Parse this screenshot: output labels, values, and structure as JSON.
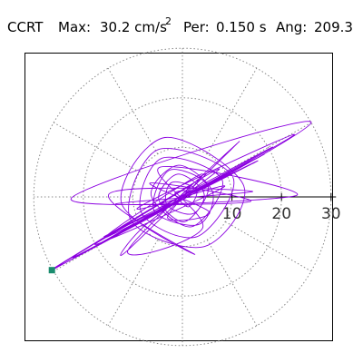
{
  "header": {
    "station": "CCRT",
    "max_label": "Max:",
    "max_value": "30.2 cm/s",
    "max_exponent": "2",
    "period_label": "Per:",
    "period_value": "0.150 s",
    "angle_label": "Ang:",
    "angle_value": "209.3"
  },
  "colors": {
    "trace": "#8b00e0",
    "marker": "#1a8c6e",
    "grid": "#888888",
    "axis": "#000000",
    "frame": "#000000"
  },
  "chart_data": {
    "type": "scatter",
    "title": "",
    "xlabel": "",
    "ylabel": "",
    "projection": "polar",
    "radial_ticks": [
      10,
      20,
      30
    ],
    "radial_max": 30.2,
    "grid": true,
    "grid_rings": [
      10,
      20,
      30
    ],
    "grid_spoke_step_deg": 30,
    "peak": {
      "radius": 30.2,
      "angle_deg": 209.3,
      "period_s": 0.15,
      "units": "cm/s2"
    },
    "series": [
      {
        "type": "line",
        "points": [
          [
            0,
            0
          ],
          [
            0.8,
            1.2
          ],
          [
            -1.5,
            0.7
          ],
          [
            1.2,
            -2.0
          ],
          [
            2.8,
            1.5
          ],
          [
            -2.2,
            2.9
          ],
          [
            -3.1,
            -1.6
          ],
          [
            2.1,
            -3.4
          ],
          [
            4.3,
            0.9
          ],
          [
            -1.0,
            4.6
          ],
          [
            -4.8,
            -0.4
          ],
          [
            0.5,
            -5.0
          ],
          [
            5.2,
            2.1
          ],
          [
            -2.6,
            5.4
          ],
          [
            -5.7,
            -2.8
          ],
          [
            3.2,
            -5.6
          ],
          [
            6.1,
            1.0
          ],
          [
            -0.8,
            6.4
          ],
          [
            -6.3,
            0.3
          ],
          [
            1.9,
            -6.0
          ],
          [
            8.0,
            3.5
          ],
          [
            -4.2,
            7.8
          ],
          [
            -8.3,
            -3.1
          ],
          [
            3.0,
            -8.0
          ],
          [
            10.2,
            4.0
          ],
          [
            -5.0,
            9.5
          ],
          [
            -10.5,
            -4.5
          ],
          [
            4.5,
            -10.0
          ],
          [
            12.4,
            2.2
          ],
          [
            -3.5,
            12.0
          ],
          [
            -12.3,
            -1.2
          ],
          [
            2.5,
            -11.6
          ],
          [
            -14.8,
            0.6
          ],
          [
            14.2,
            1.1
          ],
          [
            -13.5,
            -1.4
          ],
          [
            13.8,
            -0.9
          ],
          [
            -6.5,
            2.8
          ],
          [
            5.5,
            -3.1
          ],
          [
            -3.0,
            -4.2
          ],
          [
            3.8,
            4.6
          ],
          [
            -15.5,
            -8.2
          ],
          [
            16.5,
            8.6
          ],
          [
            -15.8,
            -8.0
          ],
          [
            15.0,
            7.2
          ],
          [
            -2.5,
            -1.8
          ],
          [
            -17.0,
            -9.6
          ],
          [
            18.2,
            10.1
          ],
          [
            -17.6,
            -9.5
          ],
          [
            8.5,
            2.1
          ],
          [
            -9.0,
            -2.2
          ],
          [
            22.5,
            12.5
          ],
          [
            -22.0,
            -12.2
          ],
          [
            7.2,
            5.6
          ],
          [
            -7.6,
            -5.8
          ],
          [
            -11.3,
            -11.0
          ],
          [
            11.5,
            11.2
          ],
          [
            -11.0,
            -10.8
          ],
          [
            4.1,
            -6.2
          ],
          [
            -4.5,
            6.0
          ],
          [
            23.0,
            0.3
          ],
          [
            -22.5,
            -0.4
          ],
          [
            26.0,
            15.0
          ],
          [
            -26.3,
            -14.7
          ],
          [
            2.0,
            2.5
          ],
          [
            -26.35,
            -14.75
          ],
          [
            -3.0,
            -1.5
          ],
          [
            1.5,
            2.0
          ],
          [
            -0.5,
            -0.8
          ],
          [
            0,
            0
          ]
        ]
      }
    ],
    "markers": [
      {
        "name": "peak",
        "radius": 30.2,
        "angle_deg": 209.3
      }
    ]
  }
}
